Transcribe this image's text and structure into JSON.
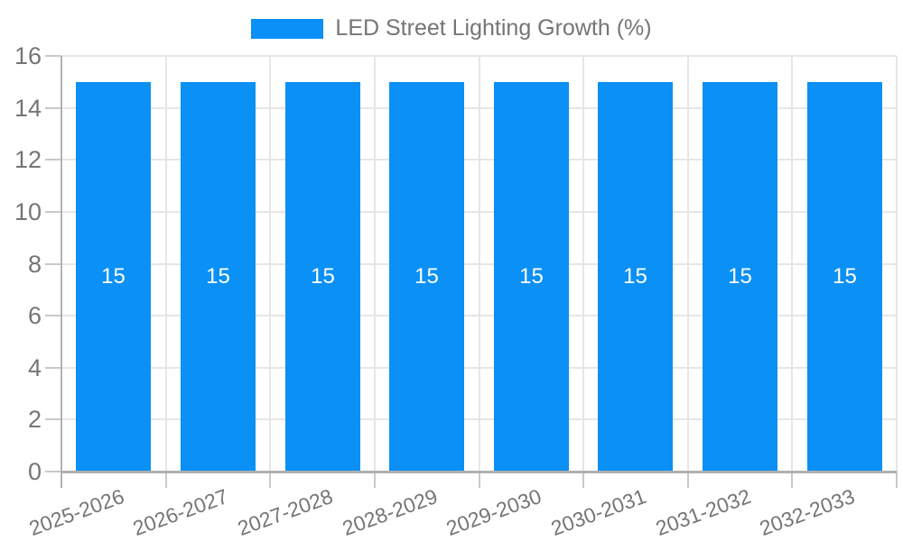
{
  "chart_data": {
    "type": "bar",
    "title": "LED Street Lighting Growth (%)",
    "categories": [
      "2025-2026",
      "2026-2027",
      "2027-2028",
      "2028-2029",
      "2029-2030",
      "2030-2031",
      "2031-2032",
      "2032-2033"
    ],
    "values": [
      15,
      15,
      15,
      15,
      15,
      15,
      15,
      15
    ],
    "bar_value_labels": [
      "15",
      "15",
      "15",
      "15",
      "15",
      "15",
      "15",
      "15"
    ],
    "ylim": [
      0,
      16
    ],
    "yticks": [
      0,
      2,
      4,
      6,
      8,
      10,
      12,
      14,
      16
    ],
    "ytick_labels": [
      "0",
      "2",
      "4",
      "6",
      "8",
      "10",
      "12",
      "14",
      "16"
    ],
    "xlabel": "",
    "ylabel": "",
    "grid": true,
    "x_label_rotation_deg": -20,
    "legend": {
      "position": "top",
      "label": "LED Street Lighting Growth (%)"
    },
    "colors": {
      "bar": "#0b90f5",
      "bar_value_label": "#ffffff",
      "axis_text": "#757575",
      "grid_line": "#e6e6e6",
      "tick_line": "#c9c9c9",
      "baseline": "#b0b0b0",
      "axis_line": "#b3b3b3",
      "background": "#ffffff"
    }
  }
}
